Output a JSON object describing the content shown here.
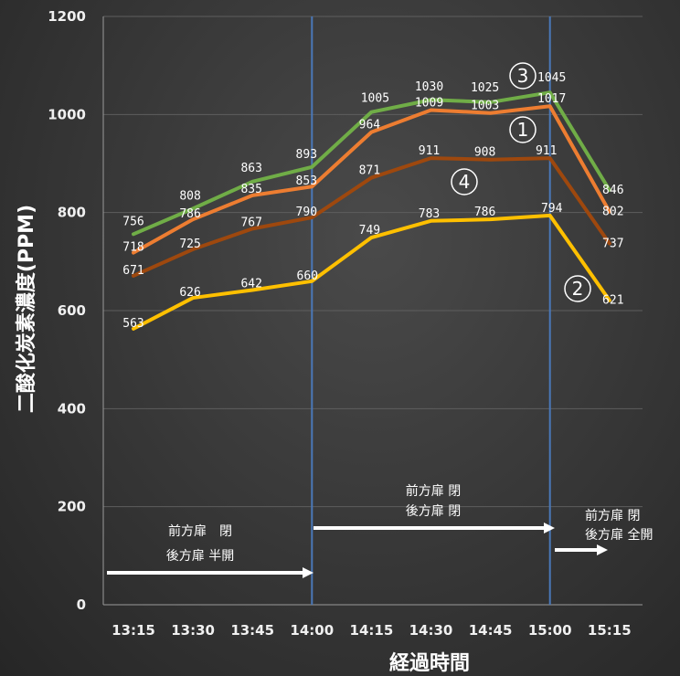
{
  "chart_data": {
    "type": "line",
    "title": "",
    "xlabel": "経過時間",
    "ylabel": "二酸化炭素濃度(PPM)",
    "categories": [
      "13:15",
      "13:30",
      "13:45",
      "14:00",
      "14:15",
      "14:30",
      "14:45",
      "15:00",
      "15:15"
    ],
    "yticks": [
      0,
      200,
      400,
      600,
      800,
      1000,
      1200
    ],
    "ylim": [
      0,
      1200
    ],
    "grid": true,
    "series": [
      {
        "name": "③",
        "color": "#70ad47",
        "values": [
          756,
          808,
          863,
          893,
          1005,
          1030,
          1025,
          1045,
          846
        ]
      },
      {
        "name": "①",
        "color": "#ed7d31",
        "values": [
          718,
          786,
          835,
          853,
          964,
          1009,
          1003,
          1017,
          802
        ]
      },
      {
        "name": "④",
        "color": "#9e480e",
        "values": [
          671,
          725,
          767,
          790,
          871,
          911,
          908,
          911,
          737
        ]
      },
      {
        "name": "②",
        "color": "#ffc000",
        "values": [
          563,
          626,
          642,
          660,
          749,
          783,
          786,
          794,
          621
        ]
      }
    ],
    "markers": [
      "14:00",
      "15:00"
    ],
    "annotations": [
      {
        "id": "a1",
        "lines": [
          "前方扉　閉",
          "後方扉 半開"
        ]
      },
      {
        "id": "a2",
        "lines": [
          "前方扉 閉",
          "後方扉 閉"
        ]
      },
      {
        "id": "a3",
        "lines": [
          "前方扉 閉",
          "後方扉 全開"
        ]
      }
    ]
  }
}
